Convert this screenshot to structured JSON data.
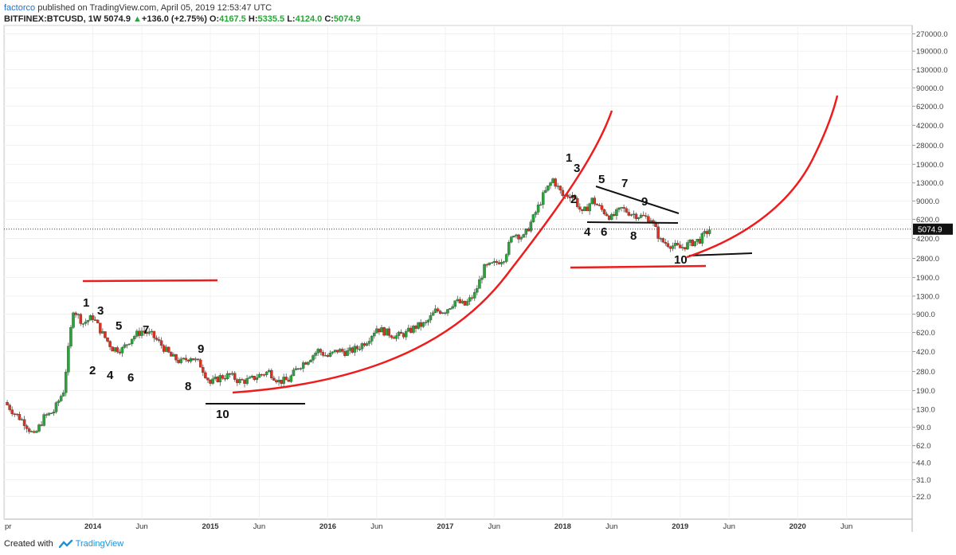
{
  "header": {
    "author": "factorco",
    "published": "published on TradingView.com, April 05, 2019 12:53:47 UTC",
    "symbol": "BITFINEX:BTCUSD, 1W",
    "price": "5074.9",
    "change_arrow": "▲",
    "change": "+136.0 (+2.75%)",
    "o_label": "O:",
    "o_value": "4167.5",
    "h_label": "H:",
    "h_value": "5335.5",
    "l_label": "L:",
    "l_value": "4124.0",
    "c_label": "C:",
    "c_value": "5074.9"
  },
  "footer": {
    "created": "Created with",
    "brand": "TradingView"
  },
  "colors": {
    "up": "#2aa43a",
    "down": "#e0301e",
    "curve": "#ee1c1c",
    "line": "#111111",
    "accent": "#1e6ed8"
  },
  "chart_data": {
    "type": "candlestick",
    "scale": "log",
    "ylim": [
      18,
      300000
    ],
    "y_ticks": [
      "270000.0",
      "190000.0",
      "130000.0",
      "90000.0",
      "62000.0",
      "42000.0",
      "28000.0",
      "19000.0",
      "13000.0",
      "9000.0",
      "6200.0",
      "4200.0",
      "2800.0",
      "1900.0",
      "1300.0",
      "900.0",
      "620.0",
      "420.0",
      "280.0",
      "190.0",
      "130.0",
      "90.0",
      "62.0",
      "44.0",
      "31.0",
      "22.0"
    ],
    "x_labels": [
      "pr",
      "2014",
      "Jun",
      "2015",
      "Jun",
      "2016",
      "Jun",
      "2017",
      "Jun",
      "2018",
      "Jun",
      "2019",
      "Jun",
      "2020",
      "Jun"
    ],
    "x_label_dates": [
      "2013-04",
      "2014-01",
      "2014-06",
      "2015-01",
      "2015-06",
      "2016-01",
      "2016-06",
      "2017-01",
      "2017-06",
      "2018-01",
      "2018-06",
      "2019-01",
      "2019-06",
      "2020-01",
      "2020-06"
    ],
    "last_price_label": "5074.9",
    "last_price": 5074.9,
    "price_path": [
      [
        "2013-04",
        150
      ],
      [
        "2013-05",
        120
      ],
      [
        "2013-06",
        100
      ],
      [
        "2013-07",
        75
      ],
      [
        "2013-08",
        110
      ],
      [
        "2013-09",
        125
      ],
      [
        "2013-10",
        190
      ],
      [
        "2013-11",
        1000
      ],
      [
        "2013-12",
        750
      ],
      [
        "2014-01",
        850
      ],
      [
        "2014-02",
        600
      ],
      [
        "2014-03",
        450
      ],
      [
        "2014-04",
        440
      ],
      [
        "2014-05",
        560
      ],
      [
        "2014-06",
        640
      ],
      [
        "2014-07",
        590
      ],
      [
        "2014-08",
        480
      ],
      [
        "2014-09",
        380
      ],
      [
        "2014-10",
        340
      ],
      [
        "2014-11",
        380
      ],
      [
        "2014-12",
        320
      ],
      [
        "2015-01",
        220
      ],
      [
        "2015-02",
        250
      ],
      [
        "2015-03",
        260
      ],
      [
        "2015-04",
        230
      ],
      [
        "2015-05",
        235
      ],
      [
        "2015-06",
        260
      ],
      [
        "2015-07",
        280
      ],
      [
        "2015-08",
        230
      ],
      [
        "2015-09",
        235
      ],
      [
        "2015-10",
        310
      ],
      [
        "2015-11",
        360
      ],
      [
        "2015-12",
        430
      ],
      [
        "2016-01",
        380
      ],
      [
        "2016-02",
        430
      ],
      [
        "2016-03",
        415
      ],
      [
        "2016-04",
        450
      ],
      [
        "2016-05",
        530
      ],
      [
        "2016-06",
        680
      ],
      [
        "2016-07",
        620
      ],
      [
        "2016-08",
        575
      ],
      [
        "2016-09",
        610
      ],
      [
        "2016-10",
        700
      ],
      [
        "2016-11",
        740
      ],
      [
        "2016-12",
        960
      ],
      [
        "2017-01",
        970
      ],
      [
        "2017-02",
        1180
      ],
      [
        "2017-03",
        1080
      ],
      [
        "2017-04",
        1350
      ],
      [
        "2017-05",
        2300
      ],
      [
        "2017-06",
        2500
      ],
      [
        "2017-07",
        2850
      ],
      [
        "2017-08",
        4700
      ],
      [
        "2017-09",
        4300
      ],
      [
        "2017-10",
        6400
      ],
      [
        "2017-11",
        10000
      ],
      [
        "2017-12",
        14000
      ],
      [
        "2018-01",
        10000
      ],
      [
        "2018-02",
        10300
      ],
      [
        "2018-03",
        6900
      ],
      [
        "2018-04",
        9200
      ],
      [
        "2018-05",
        7500
      ],
      [
        "2018-06",
        6400
      ],
      [
        "2018-07",
        7700
      ],
      [
        "2018-08",
        7000
      ],
      [
        "2018-09",
        6600
      ],
      [
        "2018-10",
        6300
      ],
      [
        "2018-11",
        4000
      ],
      [
        "2018-12",
        3700
      ],
      [
        "2019-01",
        3450
      ],
      [
        "2019-02",
        3800
      ],
      [
        "2019-03",
        4100
      ],
      [
        "2019-04",
        5074.9
      ]
    ],
    "annotations_left": [
      "1",
      "2",
      "3",
      "4",
      "5",
      "6",
      "7",
      "8",
      "9",
      "10"
    ],
    "annotations_right": [
      "1",
      "2",
      "3",
      "4",
      "5",
      "6",
      "7",
      "8",
      "9",
      "10"
    ]
  }
}
